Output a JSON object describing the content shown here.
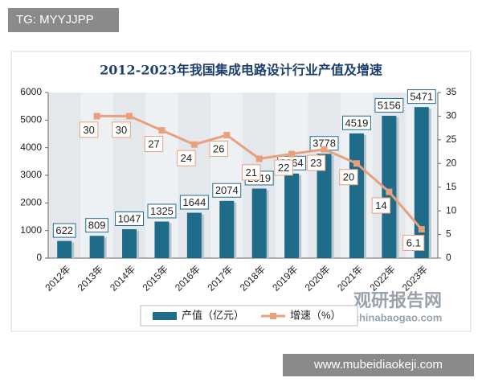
{
  "overlay": {
    "top_tag": "TG: MYYJJPP",
    "bottom_tag": "www.mubeidiaokeji.com",
    "logo_name": "观研报告网",
    "logo_url": "chinabaogao.com"
  },
  "chart_data": {
    "type": "bar-line",
    "title": "2012-2023年我国集成电路设计行业产值及增速",
    "categories": [
      "2012年",
      "2013年",
      "2014年",
      "2015年",
      "2016年",
      "2017年",
      "2018年",
      "2019年",
      "2020年",
      "2021年",
      "2022年",
      "2023年"
    ],
    "series": [
      {
        "name": "产值（亿元）",
        "type": "bar",
        "color": "#1e6b8a",
        "values": [
          622,
          809,
          1047,
          1325,
          1644,
          2074,
          2519,
          3064,
          3778,
          4519,
          5156,
          5471
        ]
      },
      {
        "name": "增速（%）",
        "type": "line",
        "axis": "y2",
        "color": "#e9a07c",
        "values": [
          null,
          30,
          30,
          27,
          24,
          26,
          21,
          22,
          23,
          20,
          14,
          6.1
        ]
      }
    ],
    "ylim": [
      0,
      6000
    ],
    "yticks": [
      0,
      1000,
      2000,
      3000,
      4000,
      5000,
      6000
    ],
    "y2lim": [
      0,
      35
    ],
    "y2ticks": [
      0,
      5,
      10,
      15,
      20,
      25,
      30,
      35
    ],
    "grid": false,
    "legend": "bottom"
  }
}
